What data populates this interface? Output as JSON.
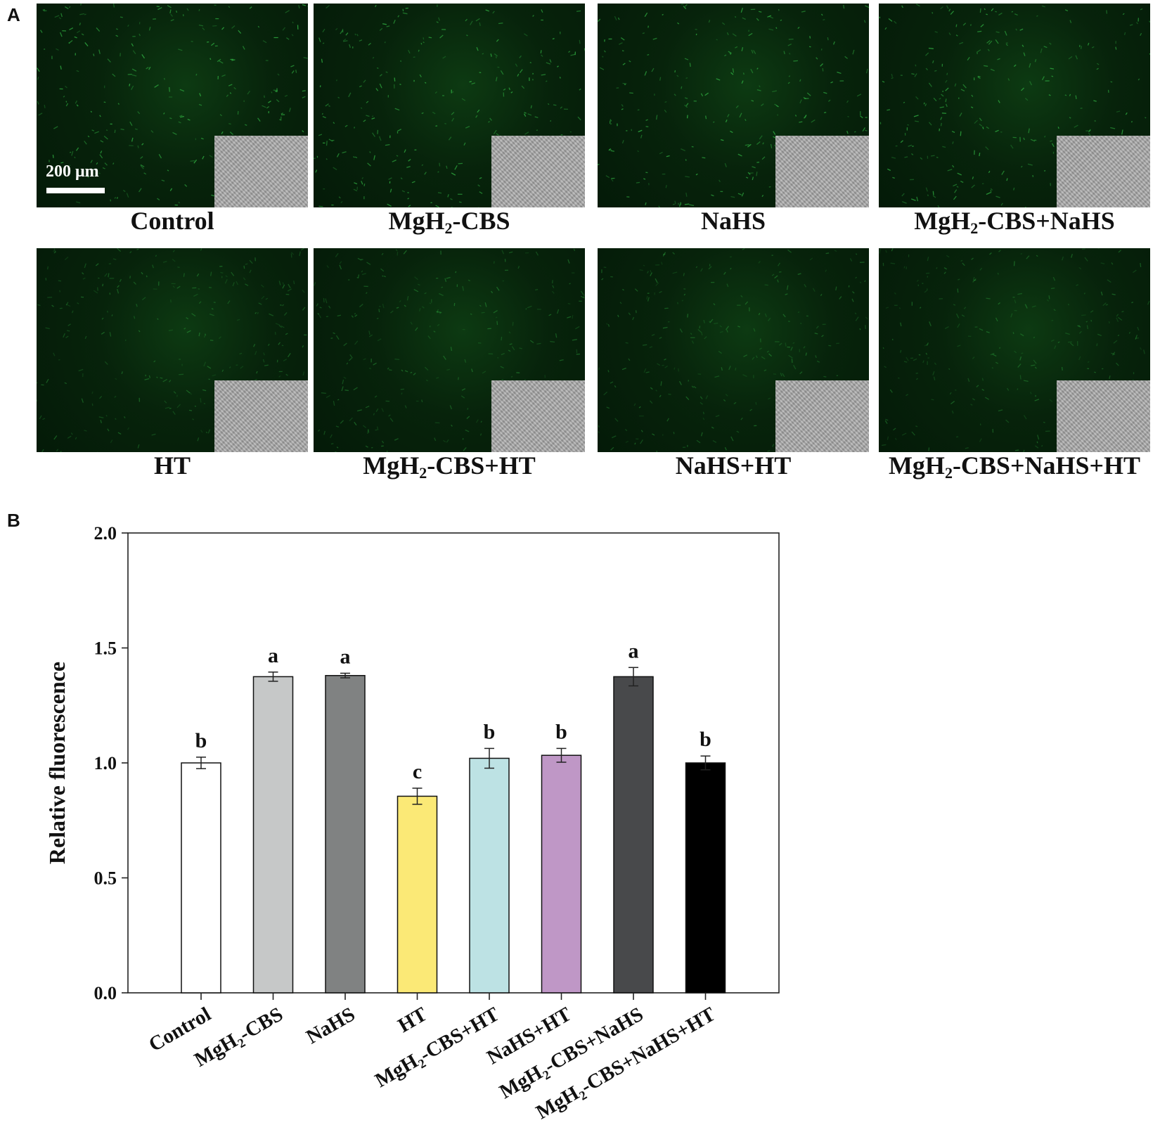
{
  "panel_a": {
    "letter": "A",
    "scale_bar_label": "200 μm",
    "images": [
      {
        "label_main": "Control",
        "label_sub": "",
        "label_rest": ""
      },
      {
        "label_main": "MgH",
        "label_sub": "2",
        "label_rest": "-CBS"
      },
      {
        "label_main": "NaHS",
        "label_sub": "",
        "label_rest": ""
      },
      {
        "label_main": "MgH",
        "label_sub": "2",
        "label_rest": "-CBS+NaHS"
      },
      {
        "label_main": "HT",
        "label_sub": "",
        "label_rest": ""
      },
      {
        "label_main": "MgH",
        "label_sub": "2",
        "label_rest": "-CBS+HT"
      },
      {
        "label_main": "NaHS+HT",
        "label_sub": "",
        "label_rest": ""
      },
      {
        "label_main": "MgH",
        "label_sub": "2",
        "label_rest": "-CBS+NaHS+HT"
      }
    ]
  },
  "panel_b": {
    "letter": "B"
  },
  "chart_data": {
    "type": "bar",
    "title": "",
    "xlabel": "",
    "ylabel": "Relative fluorescence",
    "ylim": [
      0,
      2.0
    ],
    "yticks": [
      "0.0",
      "0.5",
      "1.0",
      "1.5",
      "2.0"
    ],
    "categories": [
      {
        "main": "Control",
        "sub": "",
        "rest": ""
      },
      {
        "main": "MgH",
        "sub": "2",
        "rest": "-CBS"
      },
      {
        "main": "NaHS",
        "sub": "",
        "rest": ""
      },
      {
        "main": "HT",
        "sub": "",
        "rest": ""
      },
      {
        "main": "MgH",
        "sub": "2",
        "rest": "-CBS+HT"
      },
      {
        "main": "NaHS+HT",
        "sub": "",
        "rest": ""
      },
      {
        "main": "MgH",
        "sub": "2",
        "rest": "-CBS+NaHS"
      },
      {
        "main": "MgH",
        "sub": "2",
        "rest": "-CBS+NaHS+HT"
      }
    ],
    "values": [
      1.0,
      1.375,
      1.38,
      0.855,
      1.02,
      1.033,
      1.375,
      1.0
    ],
    "errors": [
      0.025,
      0.02,
      0.01,
      0.035,
      0.043,
      0.03,
      0.04,
      0.03
    ],
    "significance": [
      "b",
      "a",
      "a",
      "c",
      "b",
      "b",
      "a",
      "b"
    ],
    "bar_colors": [
      "#ffffff",
      "#c6c8c8",
      "#808282",
      "#fbe976",
      "#bde2e4",
      "#bf97c6",
      "#48494b",
      "#000000"
    ],
    "grid": false,
    "legend": "none"
  }
}
